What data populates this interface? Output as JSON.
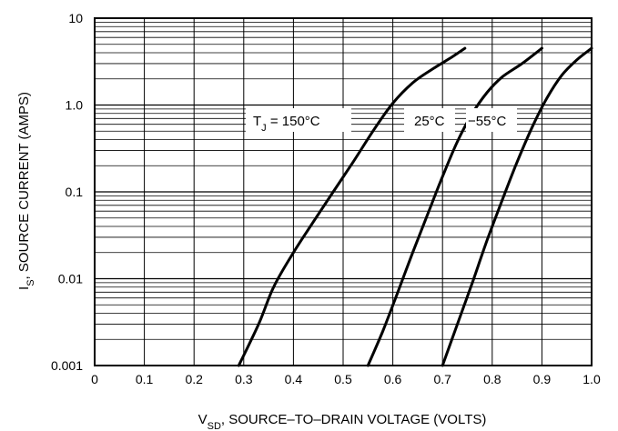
{
  "chart_data": {
    "type": "line",
    "title": "",
    "xlabel": {
      "main": "V",
      "sub": "SD",
      "rest": ", SOURCE–TO–DRAIN VOLTAGE (VOLTS)"
    },
    "ylabel": {
      "main": "I",
      "sub": "S",
      "rest": ", SOURCE CURRENT (AMPS)"
    },
    "xlim": [
      0,
      1.0
    ],
    "ylim": [
      0.001,
      10
    ],
    "yscale": "log",
    "grid": true,
    "x_ticks": [
      "0",
      "0.1",
      "0.2",
      "0.3",
      "0.4",
      "0.5",
      "0.6",
      "0.7",
      "0.8",
      "0.9",
      "1.0"
    ],
    "y_ticks": [
      "0.001",
      "0.01",
      "0.1",
      "1.0",
      "10"
    ],
    "legend": "none",
    "series": [
      {
        "x": [
          0.29,
          0.33,
          0.36,
          0.4,
          0.44,
          0.48,
          0.52,
          0.56,
          0.6,
          0.64,
          0.68,
          0.72,
          0.745
        ],
        "y": [
          0.001,
          0.003,
          0.008,
          0.02,
          0.045,
          0.1,
          0.22,
          0.5,
          1.05,
          1.8,
          2.6,
          3.6,
          4.5
        ]
      },
      {
        "x": [
          0.55,
          0.58,
          0.61,
          0.64,
          0.67,
          0.7,
          0.73,
          0.76,
          0.79,
          0.82,
          0.86,
          0.9
        ],
        "y": [
          0.001,
          0.0025,
          0.007,
          0.02,
          0.055,
          0.15,
          0.38,
          0.8,
          1.4,
          2.1,
          3.0,
          4.5
        ]
      },
      {
        "x": [
          0.7,
          0.73,
          0.76,
          0.79,
          0.82,
          0.85,
          0.88,
          0.91,
          0.94,
          0.97,
          1.0
        ],
        "y": [
          0.001,
          0.003,
          0.009,
          0.028,
          0.08,
          0.22,
          0.55,
          1.2,
          2.2,
          3.3,
          4.5
        ]
      }
    ],
    "annotations": [
      {
        "main": "T",
        "sub": "J",
        "rest": " = 150°C"
      },
      {
        "text": "25°C"
      },
      {
        "text": "−55°C"
      }
    ]
  }
}
